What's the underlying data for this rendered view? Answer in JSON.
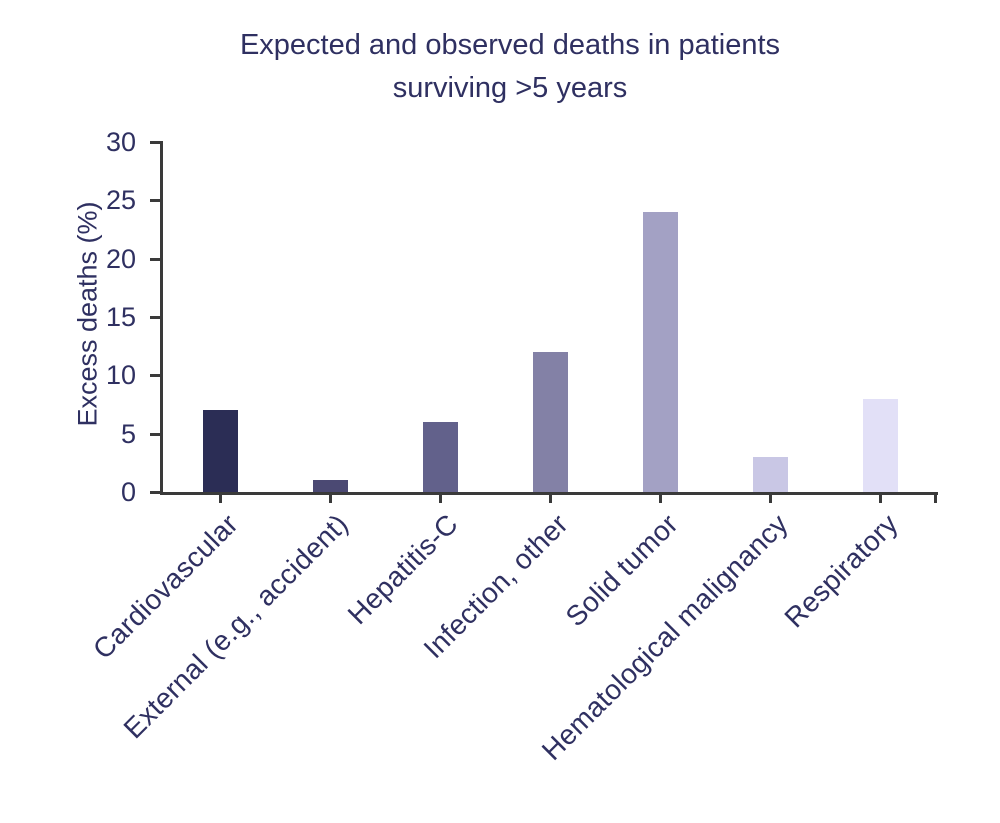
{
  "chart_data": {
    "type": "bar",
    "title": "Expected and observed deaths in patients surviving >5 years",
    "title_lines": [
      "Expected and observed deaths in patients",
      "surviving >5 years"
    ],
    "ylabel": "Excess deaths (%)",
    "xlabel": "",
    "categories": [
      "Cardiovascular",
      "External (e.g., accident)",
      "Hepatitis-C",
      "Infection, other",
      "Solid tumor",
      "Hematological malignancy",
      "Respiratory"
    ],
    "values": [
      7,
      1,
      6,
      12,
      24,
      3,
      8
    ],
    "bar_colors": [
      "#2b2d55",
      "#4b4973",
      "#62618b",
      "#8381a6",
      "#a3a1c4",
      "#c9c7e5",
      "#e2e0f7"
    ],
    "ylim": [
      0,
      30
    ],
    "yticks": [
      0,
      5,
      10,
      15,
      20,
      25,
      30
    ],
    "grid": false,
    "legend": false,
    "colors": {
      "text": "#2f3061",
      "axis": "#3a3a3a",
      "background": "#ffffff"
    }
  }
}
